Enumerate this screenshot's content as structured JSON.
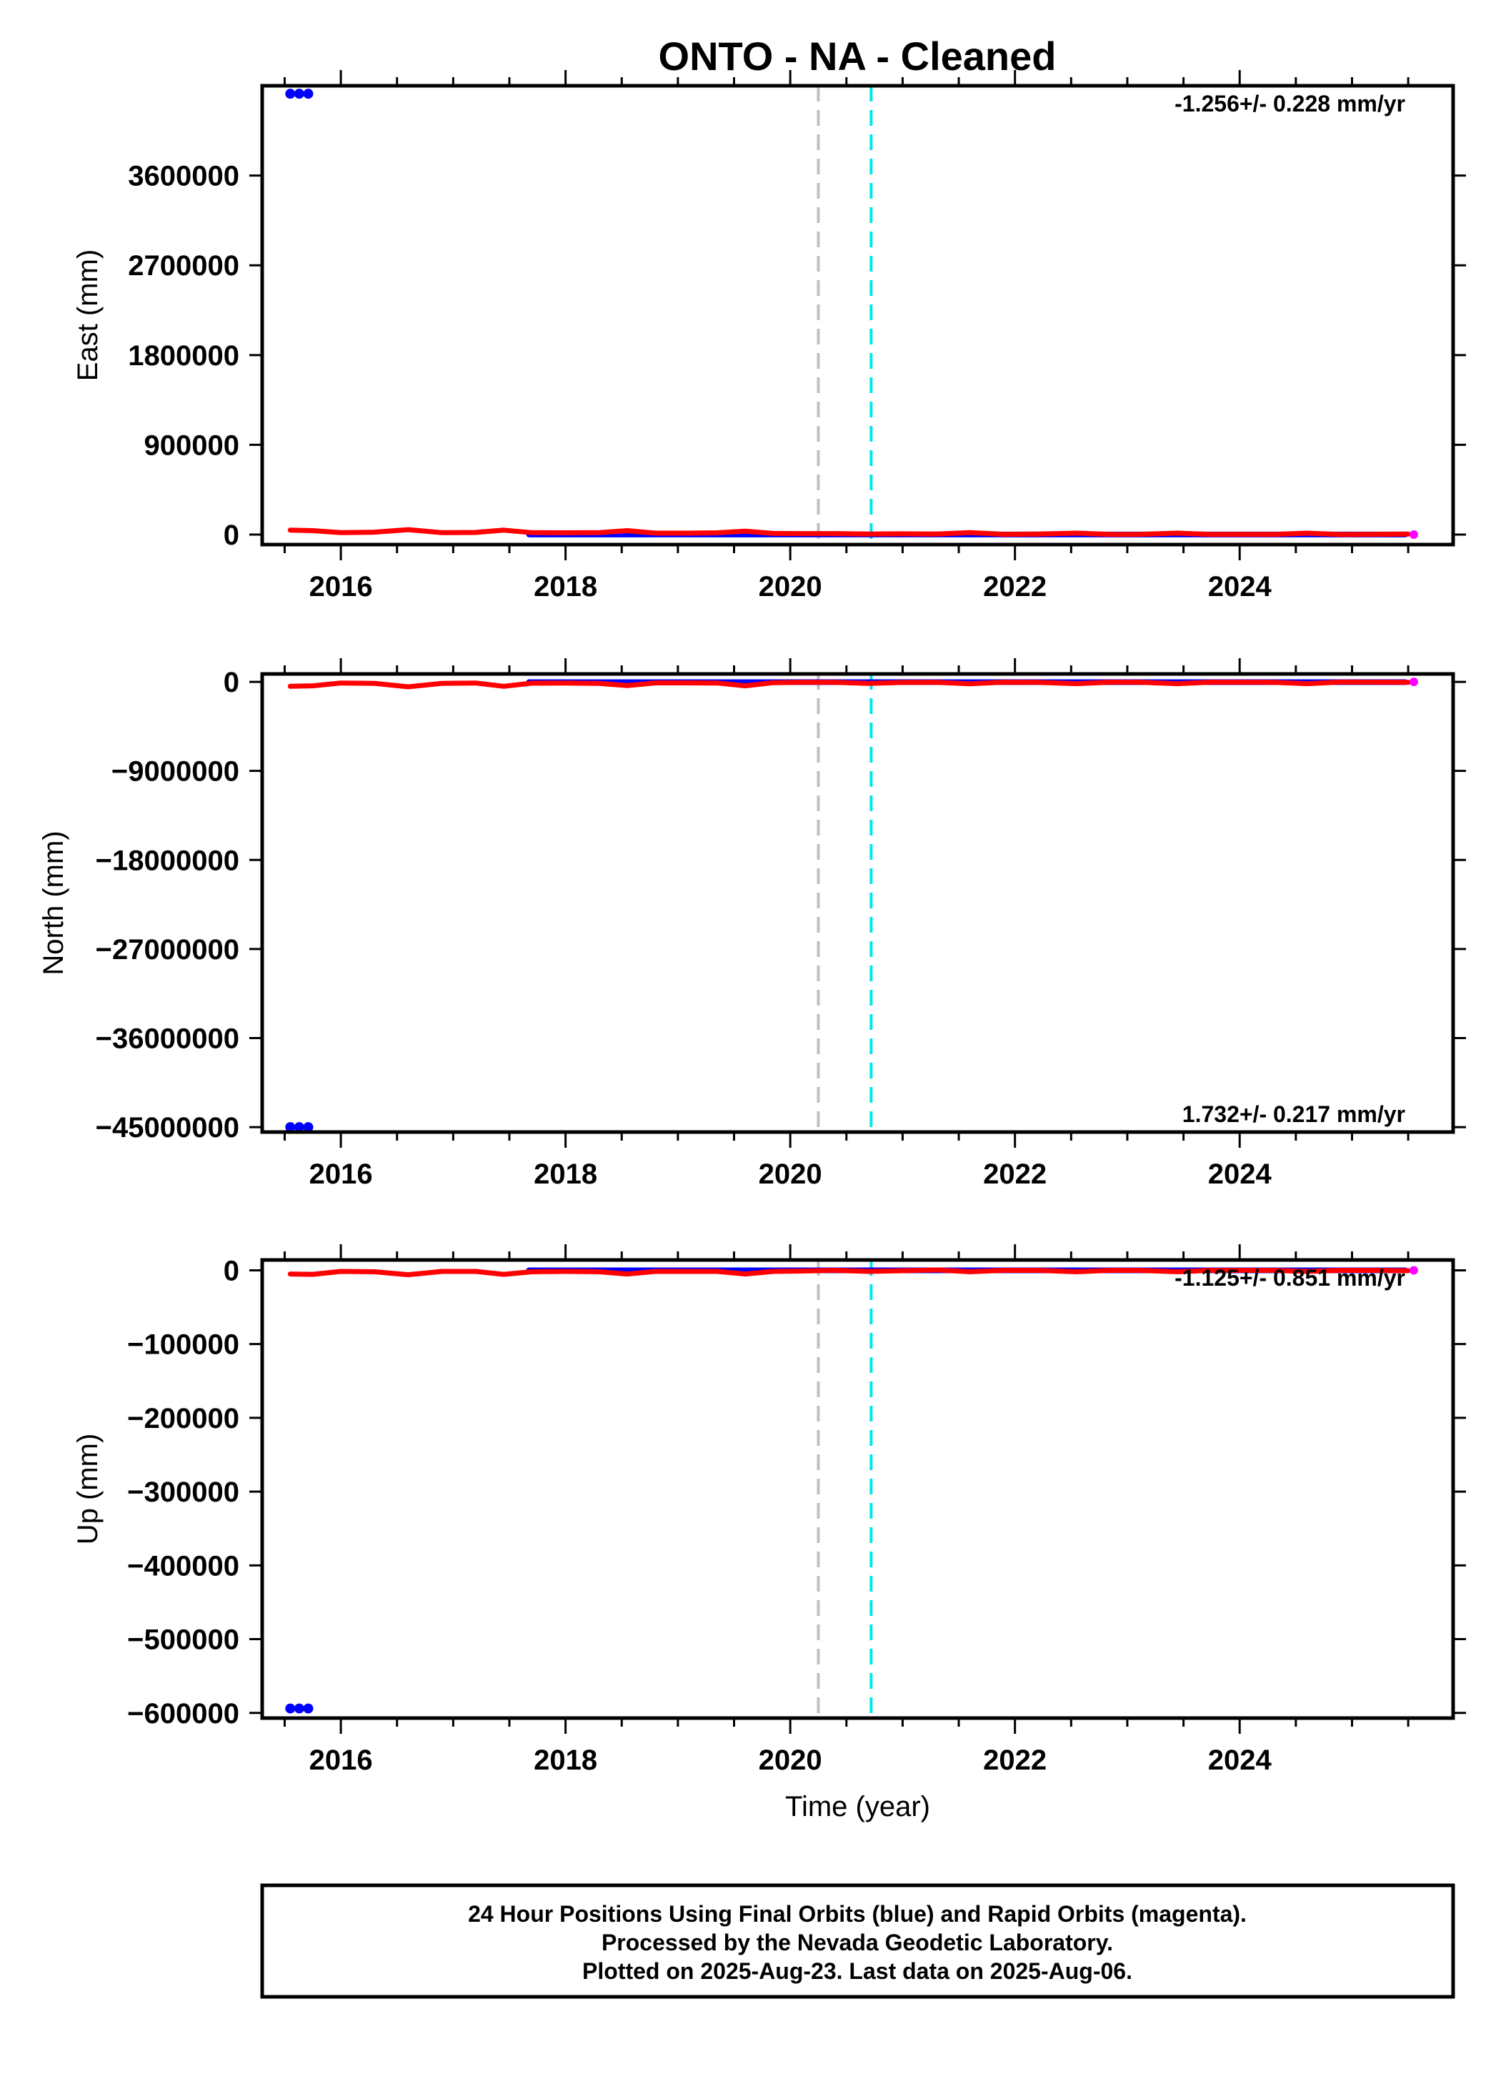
{
  "chart_data": {
    "title": "ONTO  - NA - Cleaned",
    "xlabel": "Time (year)",
    "xlim": [
      2015.3,
      2025.9
    ],
    "x_ticks": [
      2016,
      2018,
      2020,
      2022,
      2024
    ],
    "x_tick_labels": [
      "2016",
      "2018",
      "2020",
      "2022",
      "2024"
    ],
    "vertical_lines": [
      {
        "x": 2020.25,
        "color": "#c0c0c0",
        "style": "dashed"
      },
      {
        "x": 2020.72,
        "color": "#00e5ee",
        "style": "dashed"
      }
    ],
    "colors": {
      "final_orbits": "#0000ff",
      "rapid_orbits": "#ff00ff",
      "model": "#ff0000",
      "frame": "#000000"
    },
    "panels": [
      {
        "type": "scatter",
        "ylabel": "East (mm)",
        "ylim": [
          -100000,
          4500000
        ],
        "y_ticks": [
          0,
          900000,
          1800000,
          2700000,
          3600000
        ],
        "y_tick_labels": [
          "0",
          "900000",
          "1800000",
          "2700000",
          "3600000"
        ],
        "rate_text": "-1.256+/- 0.228 mm/yr",
        "rate_position": "top-right",
        "outliers": {
          "x": [
            2015.55,
            2015.63,
            2015.71
          ],
          "y": [
            4420000,
            4420000,
            4420000
          ]
        },
        "blue_range": {
          "x": [
            2017.65,
            2025.5
          ],
          "y": [
            0,
            0
          ]
        },
        "blue_band": [
          -5000,
          8000
        ],
        "rapid_point": {
          "x": 2025.55,
          "y": 0
        },
        "model": {
          "x": [
            2015.55,
            2015.75,
            2016.0,
            2016.3,
            2016.6,
            2016.9,
            2017.2,
            2017.45,
            2017.7,
            2018.0,
            2018.3,
            2018.55,
            2018.8,
            2019.1,
            2019.35,
            2019.6,
            2019.85,
            2020.1,
            2020.4,
            2020.7,
            2021.0,
            2021.3,
            2021.6,
            2021.9,
            2022.2,
            2022.55,
            2022.85,
            2023.1,
            2023.45,
            2023.75,
            2024.0,
            2024.3,
            2024.6,
            2024.9,
            2025.2,
            2025.5
          ],
          "y": [
            45000,
            40000,
            20000,
            25000,
            50000,
            20000,
            22000,
            45000,
            20000,
            18000,
            20000,
            40000,
            15000,
            15000,
            18000,
            35000,
            12000,
            10000,
            10000,
            5000,
            8000,
            5000,
            20000,
            3000,
            5000,
            15000,
            2000,
            3000,
            15000,
            2000,
            3000,
            2000,
            15000,
            1000,
            3000,
            5000
          ]
        }
      },
      {
        "type": "scatter",
        "ylabel": "North (mm)",
        "ylim": [
          -45500000,
          800000
        ],
        "y_ticks": [
          0,
          -9000000,
          -18000000,
          -27000000,
          -36000000,
          -45000000
        ],
        "y_tick_labels": [
          "0",
          "−9000000",
          "−18000000",
          "−27000000",
          "−36000000",
          "−45000000"
        ],
        "rate_text": "1.732+/- 0.217 mm/yr",
        "rate_position": "bottom-right",
        "outliers": {
          "x": [
            2015.55,
            2015.63,
            2015.71
          ],
          "y": [
            -45000000,
            -45000000,
            -45000000
          ]
        },
        "blue_range": {
          "x": [
            2017.65,
            2025.5
          ],
          "y": [
            0,
            0
          ]
        },
        "blue_band": [
          -150000,
          90000
        ],
        "rapid_point": {
          "x": 2025.55,
          "y": 0
        },
        "model": {
          "x": [
            2015.55,
            2015.75,
            2016.0,
            2016.3,
            2016.6,
            2016.9,
            2017.2,
            2017.45,
            2017.7,
            2018.0,
            2018.3,
            2018.55,
            2018.8,
            2019.1,
            2019.35,
            2019.6,
            2019.85,
            2020.1,
            2020.4,
            2020.7,
            2021.0,
            2021.3,
            2021.6,
            2021.9,
            2022.2,
            2022.55,
            2022.85,
            2023.1,
            2023.45,
            2023.75,
            2024.0,
            2024.3,
            2024.6,
            2024.9,
            2025.2,
            2025.5
          ],
          "y": [
            -450000,
            -400000,
            -120000,
            -150000,
            -500000,
            -150000,
            -120000,
            -450000,
            -130000,
            -120000,
            -150000,
            -380000,
            -100000,
            -100000,
            -120000,
            -400000,
            -80000,
            -50000,
            -50000,
            -150000,
            -60000,
            -50000,
            -200000,
            -40000,
            -50000,
            -180000,
            -30000,
            -40000,
            -180000,
            -30000,
            -40000,
            -50000,
            -180000,
            -20000,
            -30000,
            -50000
          ]
        }
      },
      {
        "type": "scatter",
        "ylabel": "Up (mm)",
        "ylim": [
          -607000,
          14000
        ],
        "y_ticks": [
          0,
          -100000,
          -200000,
          -300000,
          -400000,
          -500000,
          -600000
        ],
        "y_tick_labels": [
          "0",
          "−100000",
          "−200000",
          "−300000",
          "−400000",
          "−500000",
          "−600000"
        ],
        "rate_text": "-1.125+/- 0.851 mm/yr",
        "rate_position": "top-right",
        "outliers": {
          "x": [
            2015.55,
            2015.63,
            2015.71
          ],
          "y": [
            -594000,
            -594000,
            -594000
          ]
        },
        "blue_range": {
          "x": [
            2017.65,
            2025.5
          ],
          "y": [
            0,
            0
          ]
        },
        "blue_band": [
          -1500,
          1500
        ],
        "rapid_point": {
          "x": 2025.55,
          "y": 0
        },
        "model": {
          "x": [
            2015.55,
            2015.75,
            2016.0,
            2016.3,
            2016.6,
            2016.9,
            2017.2,
            2017.45,
            2017.7,
            2018.0,
            2018.3,
            2018.55,
            2018.8,
            2019.1,
            2019.35,
            2019.6,
            2019.85,
            2020.1,
            2020.4,
            2020.7,
            2021.0,
            2021.3,
            2021.6,
            2021.9,
            2022.2,
            2022.55,
            2022.85,
            2023.1,
            2023.45,
            2023.75,
            2024.0,
            2024.3,
            2024.6,
            2024.9,
            2025.2,
            2025.5
          ],
          "y": [
            -5000,
            -5500,
            -1500,
            -2000,
            -6000,
            -1500,
            -1500,
            -5500,
            -2000,
            -1500,
            -2000,
            -5000,
            -1500,
            -1500,
            -1500,
            -5000,
            -1500,
            -1000,
            0,
            -1500,
            -500,
            500,
            -2000,
            0,
            0,
            -2000,
            0,
            0,
            -2000,
            0,
            0,
            0,
            -1500,
            0,
            0,
            -500
          ]
        }
      }
    ]
  },
  "footer": {
    "lines": [
      "24 Hour Positions Using Final Orbits (blue) and Rapid Orbits (magenta).",
      "Processed by the Nevada Geodetic Laboratory.",
      "Plotted on 2025-Aug-23. Last data on 2025-Aug-06."
    ]
  }
}
